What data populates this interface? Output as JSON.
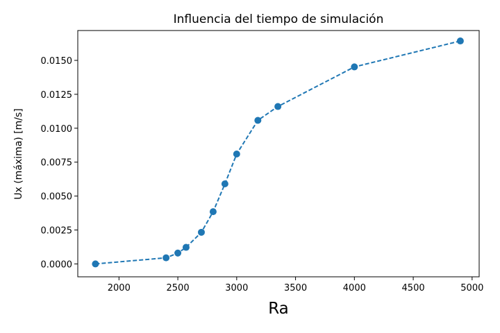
{
  "chart_data": {
    "type": "line",
    "title": "Influencia del tiempo de simulación",
    "xlabel": "Ra",
    "ylabel": "Ux (máxima) [m/s]",
    "xlim": [
      1650,
      5060
    ],
    "ylim": [
      -0.00095,
      0.0172
    ],
    "x_ticks": [
      2000,
      2500,
      3000,
      3500,
      4000,
      4500,
      5000
    ],
    "x_tick_labels": [
      "2000",
      "2500",
      "3000",
      "3500",
      "4000",
      "4500",
      "5000"
    ],
    "y_ticks": [
      0.0,
      0.0025,
      0.005,
      0.0075,
      0.01,
      0.0125,
      0.015
    ],
    "y_tick_labels": [
      "0.0000",
      "0.0025",
      "0.0050",
      "0.0075",
      "0.0100",
      "0.0125",
      "0.0150"
    ],
    "grid": false,
    "line_style": "dashed",
    "marker": "circle",
    "color": "#1f77b4",
    "series": [
      {
        "x": [
          1800,
          2400,
          2500,
          2570,
          2700,
          2800,
          2900,
          3000,
          3180,
          3350,
          4000,
          4900
        ],
        "y": [
          0.0,
          0.00045,
          0.0008,
          0.00122,
          0.00233,
          0.00385,
          0.0059,
          0.0081,
          0.01058,
          0.0116,
          0.01452,
          0.01643
        ]
      }
    ]
  }
}
